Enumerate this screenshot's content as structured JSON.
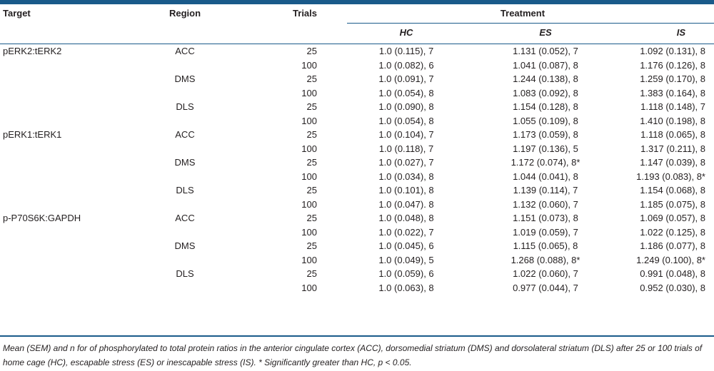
{
  "header": {
    "target": "Target",
    "region": "Region",
    "trials": "Trials",
    "treatment": "Treatment",
    "hc": "HC",
    "es": "ES",
    "is": "IS"
  },
  "rows": [
    {
      "target": "pERK2:tERK2",
      "region": "ACC",
      "trials": "25",
      "hc": "1.0 (0.115), 7",
      "es": "1.131 (0.052), 7",
      "is": "1.092 (0.131), 8"
    },
    {
      "target": "",
      "region": "",
      "trials": "100",
      "hc": "1.0 (0.082), 6",
      "es": "1.041 (0.087), 8",
      "is": "1.176 (0.126), 8"
    },
    {
      "target": "",
      "region": "DMS",
      "trials": "25",
      "hc": "1.0 (0.091), 7",
      "es": "1.244 (0.138), 8",
      "is": "1.259 (0.170), 8"
    },
    {
      "target": "",
      "region": "",
      "trials": "100",
      "hc": "1.0 (0.054), 8",
      "es": "1.083 (0.092), 8",
      "is": "1.383 (0.164), 8"
    },
    {
      "target": "",
      "region": "DLS",
      "trials": "25",
      "hc": "1.0 (0.090), 8",
      "es": "1.154 (0.128), 8",
      "is": "1.118 (0.148), 7"
    },
    {
      "target": "",
      "region": "",
      "trials": "100",
      "hc": "1.0 (0.054), 8",
      "es": "1.055 (0.109), 8",
      "is": "1.410 (0.198), 8"
    },
    {
      "target": "pERK1:tERK1",
      "region": "ACC",
      "trials": "25",
      "hc": "1.0 (0.104), 7",
      "es": "1.173 (0.059), 8",
      "is": "1.118 (0.065), 8"
    },
    {
      "target": "",
      "region": "",
      "trials": "100",
      "hc": "1.0 (0.118), 7",
      "es": "1.197 (0.136), 5",
      "is": "1.317 (0.211), 8"
    },
    {
      "target": "",
      "region": "DMS",
      "trials": "25",
      "hc": "1.0 (0.027), 7",
      "es": "1.172 (0.074), 8*",
      "is": "1.147 (0.039), 8"
    },
    {
      "target": "",
      "region": "",
      "trials": "100",
      "hc": "1.0 (0.034), 8",
      "es": "1.044 (0.041), 8",
      "is": "1.193 (0.083), 8*"
    },
    {
      "target": "",
      "region": "DLS",
      "trials": "25",
      "hc": "1.0 (0.101), 8",
      "es": "1.139 (0.114), 7",
      "is": "1.154 (0.068), 8"
    },
    {
      "target": "",
      "region": "",
      "trials": "100",
      "hc": "1.0 (0.047). 8",
      "es": "1.132 (0.060), 7",
      "is": "1.185 (0.075), 8"
    },
    {
      "target": "p-P70S6K:GAPDH",
      "region": "ACC",
      "trials": "25",
      "hc": "1.0 (0.048), 8",
      "es": "1.151 (0.073), 8",
      "is": "1.069 (0.057), 8"
    },
    {
      "target": "",
      "region": "",
      "trials": "100",
      "hc": "1.0 (0.022), 7",
      "es": "1.019 (0.059), 7",
      "is": "1.022 (0.125), 8"
    },
    {
      "target": "",
      "region": "DMS",
      "trials": "25",
      "hc": "1.0 (0.045), 6",
      "es": "1.115 (0.065), 8",
      "is": "1.186 (0.077), 8"
    },
    {
      "target": "",
      "region": "",
      "trials": "100",
      "hc": "1.0 (0.049), 5",
      "es": "1.268 (0.088), 8*",
      "is": "1.249 (0.100), 8*"
    },
    {
      "target": "",
      "region": "DLS",
      "trials": "25",
      "hc": "1.0 (0.059), 6",
      "es": "1.022 (0.060), 7",
      "is": "0.991 (0.048), 8"
    },
    {
      "target": "",
      "region": "",
      "trials": "100",
      "hc": "1.0 (0.063), 8",
      "es": "0.977 (0.044), 7",
      "is": "0.952 (0.030), 8"
    }
  ],
  "footnote": "Mean (SEM) and n for of phosphorylated to total protein ratios in the anterior cingulate cortex (ACC), dorsomedial striatum (DMS) and dorsolateral striatum (DLS) after 25 or 100 trials of home cage (HC), escapable stress (ES) or inescapable stress (IS). * Significantly greater than HC, p < 0.05.",
  "colors": {
    "rule": "#1a5a8a",
    "text": "#231f20"
  }
}
